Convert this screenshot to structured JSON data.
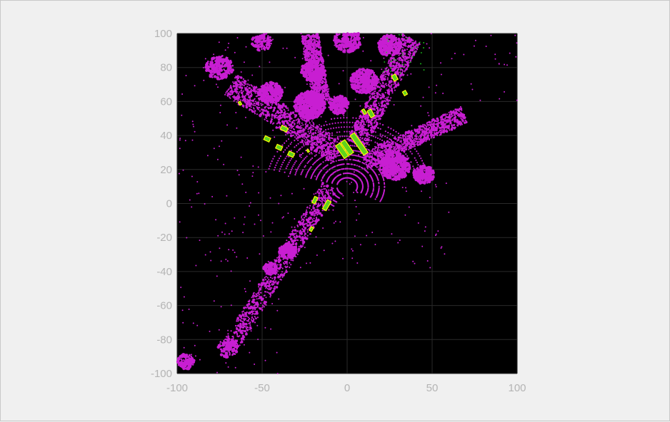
{
  "figure": {
    "background_color": "#f0f0f0"
  },
  "chart_data": {
    "type": "scatter",
    "title": "",
    "xlabel": "",
    "ylabel": "",
    "xlim": [
      -100,
      100
    ],
    "ylim": [
      -100,
      100
    ],
    "xticks": [
      -100,
      -50,
      0,
      50,
      100
    ],
    "yticks": [
      100,
      80,
      60,
      40,
      20,
      0,
      -20,
      -40,
      -60,
      -80,
      -100
    ],
    "xtick_labels": [
      "-100",
      "-50",
      "0",
      "50",
      "100"
    ],
    "ytick_labels": [
      "100",
      "80",
      "60",
      "40",
      "20",
      "0",
      "-20",
      "-40",
      "-60",
      "-80",
      "-100"
    ],
    "grid": true,
    "grid_color": "#2a2a2a",
    "plot_background": "#000000",
    "tick_label_color": "#b4b4b4",
    "point_cloud": {
      "color": "#c81ed2"
    },
    "ground_points_color": "#1ec81e",
    "boxes": {
      "fill_color": "#5fd21e",
      "edge_color": "#ffff00",
      "items": [
        {
          "cx": 7,
          "cy": 35,
          "w": 3,
          "h": 14,
          "angle": -35
        },
        {
          "cx": 0,
          "cy": 33,
          "w": 3,
          "h": 9,
          "angle": -35
        },
        {
          "cx": -3,
          "cy": 31,
          "w": 3,
          "h": 9,
          "angle": -35
        },
        {
          "cx": 14,
          "cy": 53,
          "w": 2.5,
          "h": 4.5,
          "angle": -30
        },
        {
          "cx": 10,
          "cy": 54,
          "w": 1.5,
          "h": 3,
          "angle": -30
        },
        {
          "cx": 28,
          "cy": 74,
          "w": 2.5,
          "h": 3.5,
          "angle": -30
        },
        {
          "cx": 34,
          "cy": 65,
          "w": 2,
          "h": 2.5,
          "angle": -30
        },
        {
          "cx": -37,
          "cy": 44,
          "w": 2.5,
          "h": 4,
          "angle": -65
        },
        {
          "cx": -47,
          "cy": 38,
          "w": 2.5,
          "h": 3.5,
          "angle": -65
        },
        {
          "cx": -40,
          "cy": 33,
          "w": 2.5,
          "h": 3.5,
          "angle": -65
        },
        {
          "cx": -33,
          "cy": 29,
          "w": 2.5,
          "h": 3.5,
          "angle": -65
        },
        {
          "cx": -63,
          "cy": 59,
          "w": 1.2,
          "h": 2,
          "angle": -30
        },
        {
          "cx": -23,
          "cy": 31,
          "w": 1,
          "h": 1.5,
          "angle": -30
        },
        {
          "cx": -19,
          "cy": 2,
          "w": 2,
          "h": 4,
          "angle": 25
        },
        {
          "cx": -12,
          "cy": -1,
          "w": 2.5,
          "h": 6,
          "angle": 30
        },
        {
          "cx": -21,
          "cy": -15,
          "w": 1.5,
          "h": 2.5,
          "angle": 30
        }
      ]
    }
  }
}
